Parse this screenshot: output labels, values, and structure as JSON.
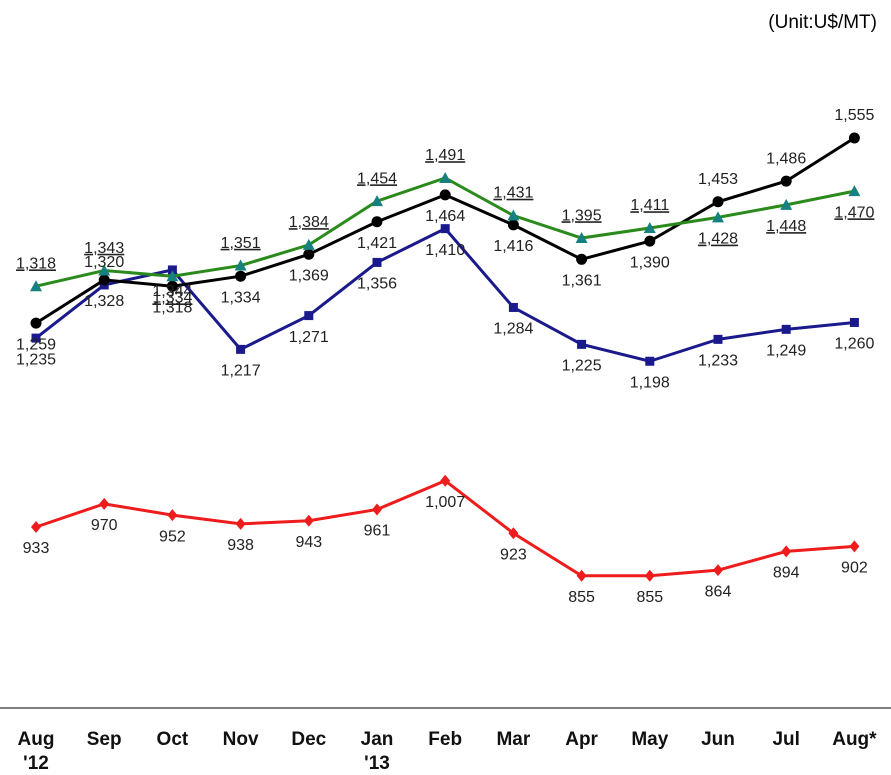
{
  "chart_data": {
    "type": "line",
    "unit_note": "(Unit:U$/MT)",
    "categories": [
      "Aug\n'12",
      "Sep",
      "Oct",
      "Nov",
      "Dec",
      "Jan\n'13",
      "Feb",
      "Mar",
      "Apr",
      "May",
      "Jun",
      "Jul",
      "Aug*"
    ],
    "ylim": [
      650,
      1750
    ],
    "grid": false,
    "series": [
      {
        "color": "#2b8a1c",
        "marker_color": "#178080",
        "marker": "triangle",
        "underline": true,
        "values": [
          1318,
          1343,
          1334,
          1351,
          1384,
          1454,
          1491,
          1431,
          1395,
          1411,
          1428,
          1448,
          1470
        ],
        "value_labels": [
          "1,318",
          "1,343",
          "1,334",
          "1,351",
          "1,384",
          "1,454",
          "1,491",
          "1,431",
          "1,395",
          "1,411",
          "1,428",
          "1,448",
          "1,470"
        ]
      },
      {
        "color": "#000000",
        "marker_color": "#000000",
        "marker": "circle",
        "underline": false,
        "values": [
          1259,
          1328,
          1318,
          1334,
          1369,
          1421,
          1464,
          1416,
          1361,
          1390,
          1453,
          1486,
          1555
        ],
        "value_labels": [
          "1,259",
          "1,328",
          "1,318",
          "1,334",
          "1,369",
          "1,421",
          "1,464",
          "1,416",
          "1,361",
          "1,390",
          "1,453",
          "1,486",
          "1,555"
        ]
      },
      {
        "color": "#1a1a8c",
        "marker_color": "#1a1a8c",
        "marker": "square",
        "underline": false,
        "values": [
          1235,
          1320,
          1344,
          1217,
          1271,
          1356,
          1410,
          1284,
          1225,
          1198,
          1233,
          1249,
          1260
        ],
        "value_labels": [
          "1,235",
          "1,320",
          "1,344",
          "1,217",
          "1,271",
          "1,356",
          "1,410",
          "1,284",
          "1,225",
          "1,198",
          "1,233",
          "1,249",
          "1,260"
        ]
      },
      {
        "color": "#ee1c1c",
        "marker_color": "#ee1c1c",
        "marker": "diamond",
        "underline": false,
        "values": [
          933,
          970,
          952,
          938,
          943,
          961,
          1007,
          923,
          855,
          855,
          864,
          894,
          902
        ],
        "value_labels": [
          "933",
          "970",
          "952",
          "938",
          "943",
          "961",
          "1,007",
          "923",
          "855",
          "855",
          "864",
          "894",
          "902"
        ]
      }
    ]
  }
}
